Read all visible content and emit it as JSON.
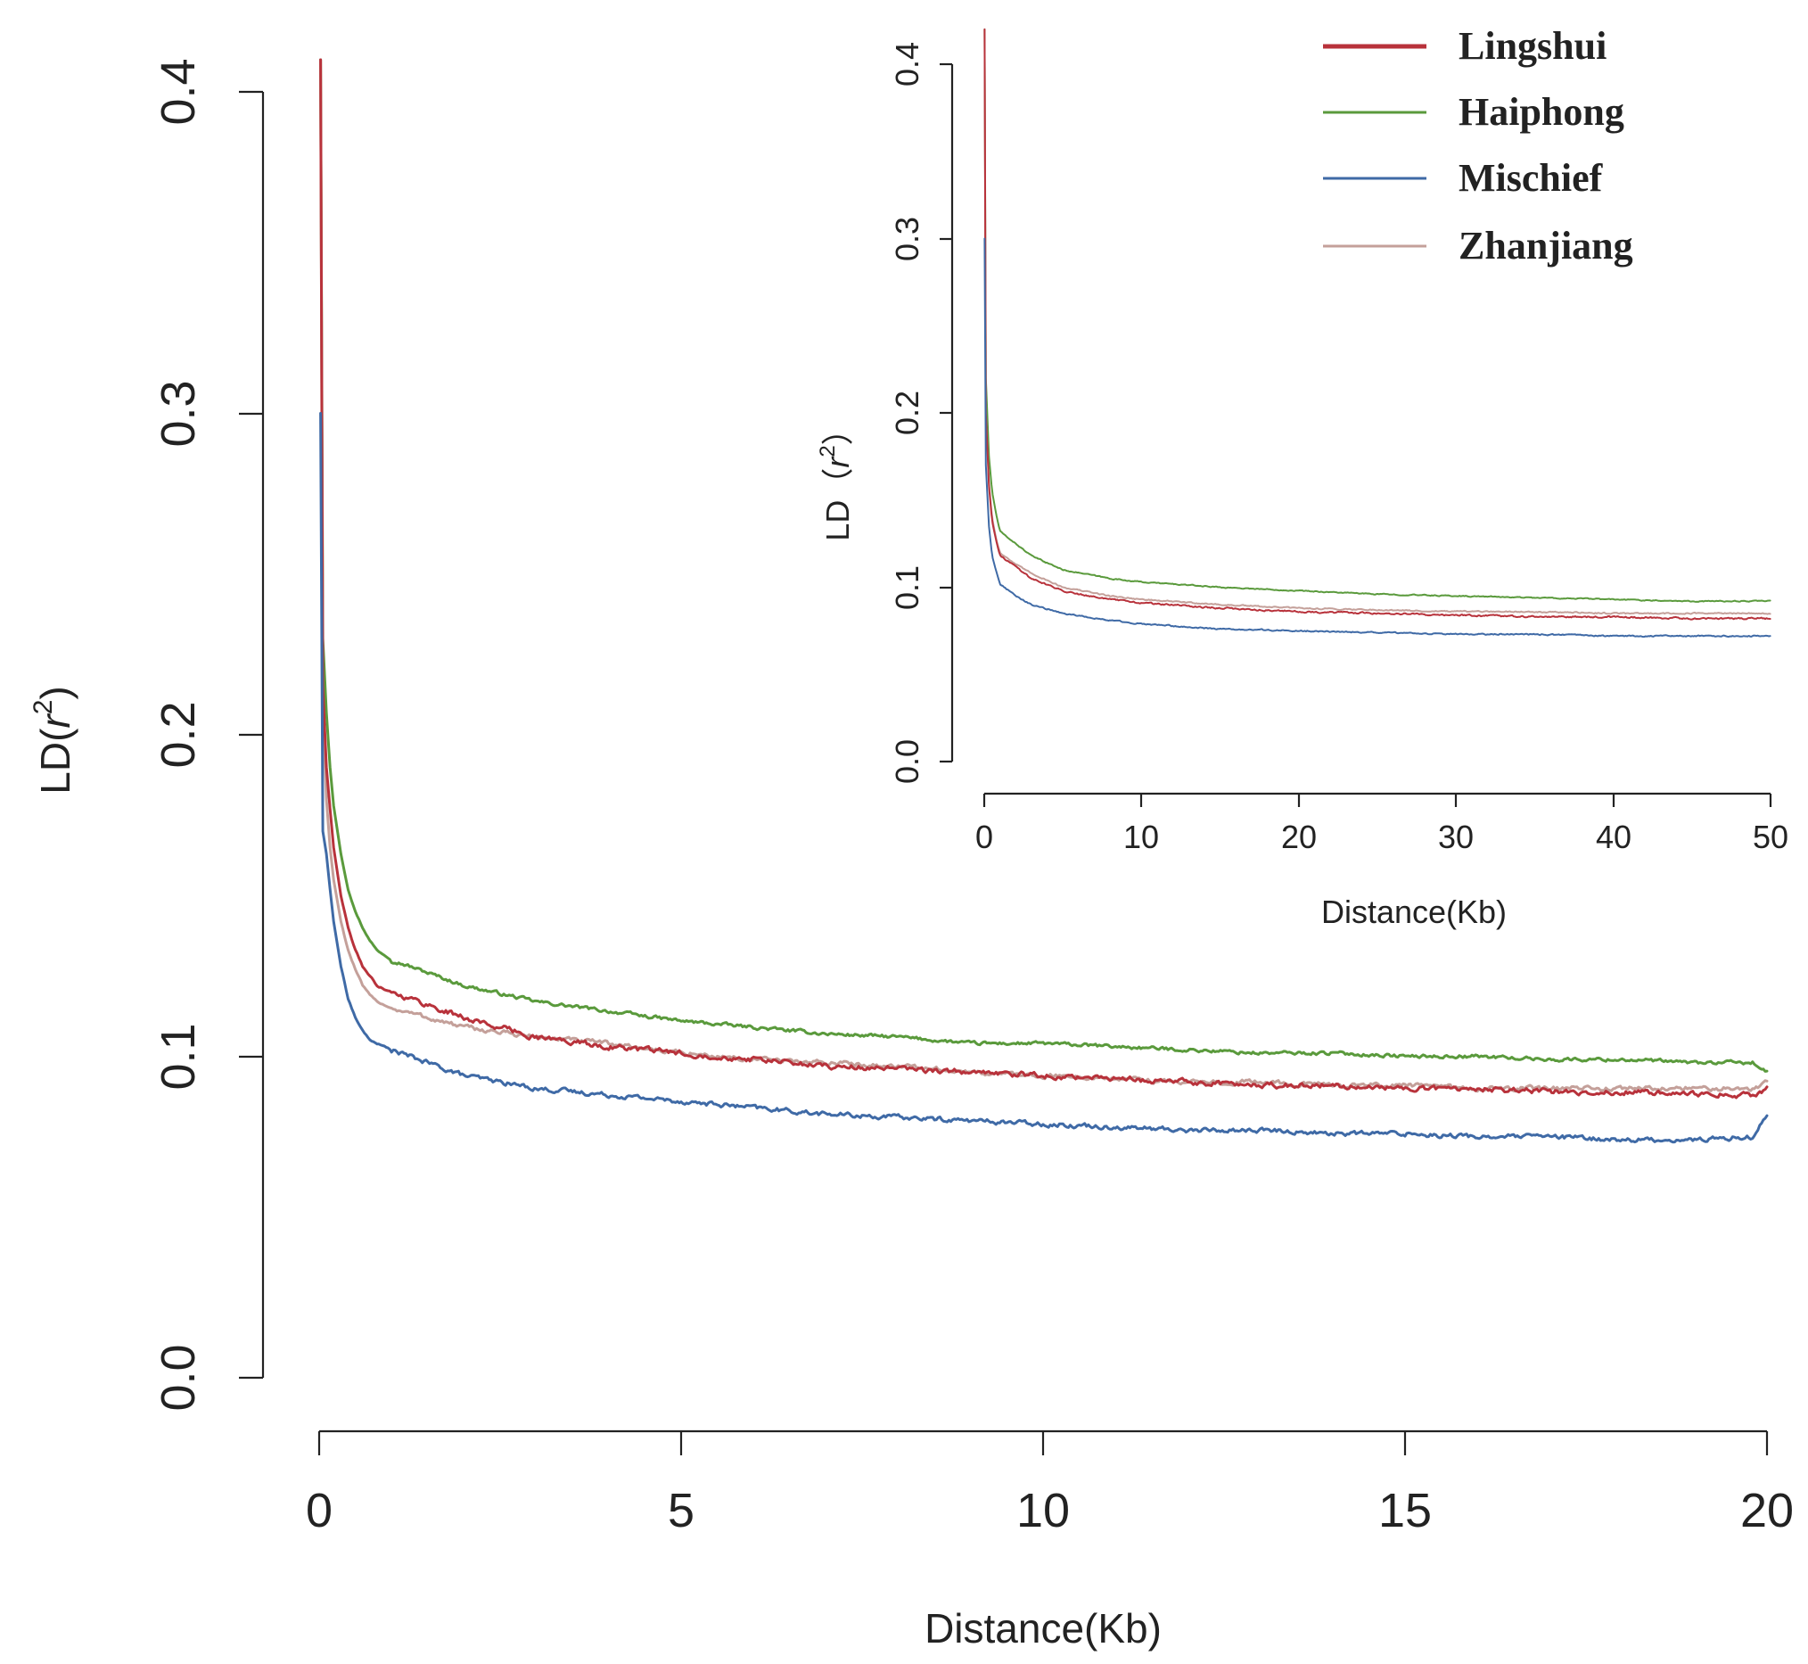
{
  "chart_data": [
    {
      "id": "main",
      "type": "line",
      "title": "",
      "xlabel": "Distance(Kb)",
      "ylabel_prefix": "LD(",
      "ylabel_var": "r",
      "ylabel_sup": "2",
      "ylabel_suffix": ")",
      "xlim": [
        0,
        20
      ],
      "ylim": [
        0,
        0.4
      ],
      "xticks": [
        0,
        5,
        10,
        15,
        20
      ],
      "xtick_labels": [
        "0",
        "5",
        "10",
        "15",
        "20"
      ],
      "yticks": [
        0,
        0.1,
        0.2,
        0.3,
        0.4
      ],
      "ytick_labels": [
        "0.0",
        "0.1",
        "0.2",
        "0.3",
        "0.4"
      ],
      "grid": false,
      "series": [
        {
          "name": "Haiphong",
          "color": "#5a9a3c",
          "noise": 0.0009,
          "x": [
            0.02,
            0.05,
            0.1,
            0.15,
            0.2,
            0.3,
            0.4,
            0.5,
            0.6,
            0.7,
            0.8,
            1.0,
            1.5,
            2,
            3,
            4,
            5,
            6,
            7,
            8,
            9,
            10,
            11,
            12,
            13,
            14,
            15,
            16,
            17,
            18,
            19,
            19.8,
            20
          ],
          "y": [
            0.41,
            0.23,
            0.207,
            0.19,
            0.178,
            0.163,
            0.152,
            0.145,
            0.14,
            0.136,
            0.133,
            0.13,
            0.126,
            0.122,
            0.117,
            0.114,
            0.111,
            0.109,
            0.107,
            0.106,
            0.104,
            0.104,
            0.103,
            0.102,
            0.101,
            0.101,
            0.1,
            0.1,
            0.099,
            0.099,
            0.098,
            0.098,
            0.095
          ]
        },
        {
          "name": "Zhanjiang",
          "color": "#c4a09a",
          "noise": 0.0012,
          "x": [
            0.02,
            0.05,
            0.1,
            0.15,
            0.2,
            0.3,
            0.4,
            0.5,
            0.6,
            0.7,
            0.8,
            1.0,
            1.5,
            2,
            3,
            4,
            5,
            6,
            7,
            8,
            9,
            10,
            11,
            12,
            13,
            14,
            15,
            16,
            17,
            18,
            19,
            19.8,
            20
          ],
          "y": [
            0.41,
            0.21,
            0.18,
            0.165,
            0.155,
            0.142,
            0.133,
            0.127,
            0.122,
            0.119,
            0.117,
            0.115,
            0.112,
            0.109,
            0.106,
            0.104,
            0.101,
            0.099,
            0.098,
            0.097,
            0.095,
            0.094,
            0.093,
            0.092,
            0.092,
            0.091,
            0.091,
            0.09,
            0.09,
            0.09,
            0.09,
            0.09,
            0.092
          ]
        },
        {
          "name": "Lingshui",
          "color": "#b8323b",
          "noise": 0.0014,
          "x": [
            0.02,
            0.05,
            0.1,
            0.15,
            0.2,
            0.3,
            0.4,
            0.5,
            0.6,
            0.7,
            0.8,
            1.0,
            1.5,
            2,
            3,
            4,
            5,
            6,
            7,
            8,
            9,
            10,
            11,
            12,
            13,
            14,
            15,
            16,
            17,
            18,
            19,
            19.8,
            20
          ],
          "y": [
            0.41,
            0.215,
            0.19,
            0.177,
            0.165,
            0.15,
            0.14,
            0.133,
            0.128,
            0.125,
            0.122,
            0.12,
            0.116,
            0.112,
            0.106,
            0.103,
            0.101,
            0.099,
            0.097,
            0.096,
            0.095,
            0.094,
            0.093,
            0.092,
            0.091,
            0.091,
            0.09,
            0.09,
            0.089,
            0.089,
            0.088,
            0.088,
            0.09
          ]
        },
        {
          "name": "Mischief",
          "color": "#3f6aa6",
          "noise": 0.0012,
          "x": [
            0.02,
            0.05,
            0.1,
            0.15,
            0.2,
            0.3,
            0.4,
            0.5,
            0.6,
            0.7,
            0.8,
            1.0,
            1.5,
            2,
            3,
            4,
            5,
            6,
            7,
            8,
            9,
            10,
            11,
            12,
            13,
            14,
            15,
            16,
            17,
            18,
            19,
            19.8,
            20
          ],
          "y": [
            0.3,
            0.17,
            0.163,
            0.152,
            0.142,
            0.128,
            0.118,
            0.112,
            0.108,
            0.105,
            0.104,
            0.102,
            0.098,
            0.094,
            0.09,
            0.088,
            0.086,
            0.084,
            0.082,
            0.081,
            0.08,
            0.079,
            0.078,
            0.077,
            0.077,
            0.076,
            0.076,
            0.075,
            0.075,
            0.074,
            0.074,
            0.075,
            0.082
          ]
        }
      ]
    },
    {
      "id": "inset",
      "type": "line",
      "title": "",
      "xlabel": "Distance(Kb)",
      "ylabel_prefix": "LD",
      "ylabel_var": "r",
      "ylabel_sup": "2",
      "ylabel_open": "（",
      "ylabel_suffix": "）",
      "xlim": [
        0,
        50
      ],
      "ylim": [
        0,
        0.4
      ],
      "xticks": [
        0,
        10,
        20,
        30,
        40,
        50
      ],
      "xtick_labels": [
        "0",
        "10",
        "20",
        "30",
        "40",
        "50"
      ],
      "yticks": [
        0,
        0.1,
        0.2,
        0.3,
        0.4
      ],
      "ytick_labels": [
        "0.0",
        "0.1",
        "0.2",
        "0.3",
        "0.4"
      ],
      "grid": false,
      "series": [
        {
          "name": "Haiphong",
          "color": "#5a9a3c",
          "noise": 0.0005,
          "x": [
            0.02,
            0.1,
            0.3,
            0.5,
            0.8,
            1,
            2,
            3,
            5,
            8,
            10,
            15,
            20,
            25,
            30,
            35,
            40,
            45,
            50
          ],
          "y": [
            0.42,
            0.22,
            0.175,
            0.155,
            0.14,
            0.132,
            0.125,
            0.118,
            0.11,
            0.105,
            0.103,
            0.1,
            0.098,
            0.096,
            0.095,
            0.094,
            0.093,
            0.092,
            0.092
          ]
        },
        {
          "name": "Zhanjiang",
          "color": "#c4a09a",
          "noise": 0.0006,
          "x": [
            0.02,
            0.1,
            0.3,
            0.5,
            0.8,
            1,
            2,
            3,
            5,
            8,
            10,
            15,
            20,
            25,
            30,
            35,
            40,
            45,
            50
          ],
          "y": [
            0.42,
            0.2,
            0.16,
            0.14,
            0.126,
            0.12,
            0.113,
            0.108,
            0.1,
            0.095,
            0.093,
            0.09,
            0.088,
            0.087,
            0.086,
            0.086,
            0.085,
            0.085,
            0.085
          ]
        },
        {
          "name": "Lingshui",
          "color": "#b8323b",
          "noise": 0.0008,
          "x": [
            0.02,
            0.1,
            0.3,
            0.5,
            0.8,
            1,
            2,
            3,
            5,
            8,
            10,
            15,
            20,
            25,
            30,
            35,
            40,
            45,
            50
          ],
          "y": [
            0.42,
            0.2,
            0.158,
            0.138,
            0.125,
            0.118,
            0.112,
            0.105,
            0.098,
            0.093,
            0.091,
            0.088,
            0.086,
            0.085,
            0.084,
            0.083,
            0.083,
            0.082,
            0.082
          ]
        },
        {
          "name": "Mischief",
          "color": "#3f6aa6",
          "noise": 0.0006,
          "x": [
            0.02,
            0.1,
            0.3,
            0.5,
            0.8,
            1,
            2,
            3,
            5,
            8,
            10,
            15,
            20,
            25,
            30,
            35,
            40,
            45,
            50
          ],
          "y": [
            0.3,
            0.17,
            0.135,
            0.118,
            0.108,
            0.102,
            0.095,
            0.09,
            0.085,
            0.081,
            0.079,
            0.076,
            0.075,
            0.074,
            0.073,
            0.073,
            0.072,
            0.072,
            0.072
          ]
        }
      ]
    }
  ],
  "legend": {
    "placement": "top-right",
    "entries": [
      {
        "name": "Lingshui",
        "color": "#b8323b"
      },
      {
        "name": "Haiphong",
        "color": "#5a9a3c"
      },
      {
        "name": "Mischief",
        "color": "#3f6aa6"
      },
      {
        "name": "Zhanjiang",
        "color": "#c4a09a"
      }
    ]
  }
}
